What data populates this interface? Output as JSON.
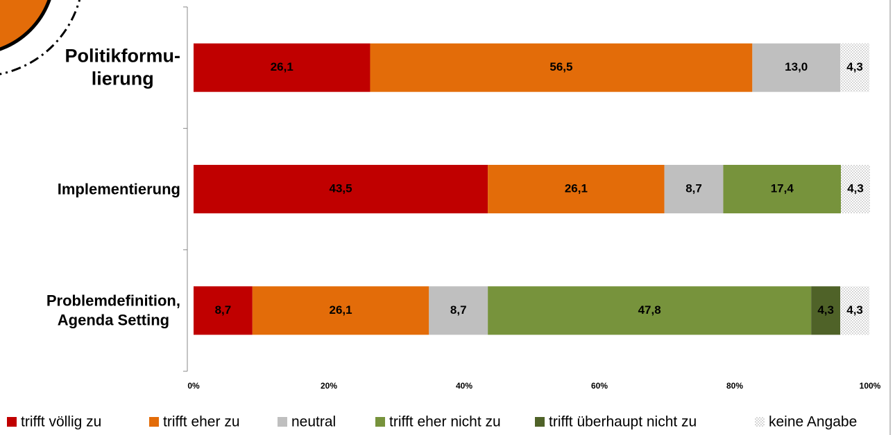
{
  "chart_data": {
    "type": "stacked-bar-horizontal",
    "categories": [
      "Politikformu-\nlierung",
      "Implementierung",
      "Problemdefinition,\nAgenda Setting"
    ],
    "series": [
      {
        "name": "trifft völlig zu",
        "color": "#c00000",
        "values": [
          26.1,
          43.5,
          8.7
        ],
        "value_labels": [
          "26,1",
          "43,5",
          "8,7"
        ]
      },
      {
        "name": "trifft eher zu",
        "color": "#e36c09",
        "values": [
          56.5,
          26.1,
          26.1
        ],
        "value_labels": [
          "56,5",
          "26,1",
          "26,1"
        ]
      },
      {
        "name": "neutral",
        "color": "#bfbfbf",
        "values": [
          13.0,
          8.7,
          8.7
        ],
        "value_labels": [
          "13,0",
          "8,7",
          "8,7"
        ]
      },
      {
        "name": "trifft eher nicht zu",
        "color": "#77933c",
        "values": [
          null,
          17.4,
          47.8
        ],
        "value_labels": [
          null,
          "17,4",
          "47,8"
        ]
      },
      {
        "name": "trifft überhaupt nicht zu",
        "color": "#4f6228",
        "values": [
          null,
          null,
          4.3
        ],
        "value_labels": [
          null,
          null,
          "4,3"
        ]
      },
      {
        "name": "keine Angabe",
        "color": "#e8e8e8",
        "values": [
          4.3,
          4.3,
          4.3
        ],
        "value_labels": [
          "4,3",
          "4,3",
          "4,3"
        ]
      }
    ],
    "xlim": [
      0,
      100
    ],
    "xticks": [
      {
        "value": 0,
        "label": "0%"
      },
      {
        "value": 20,
        "label": "20%"
      },
      {
        "value": 40,
        "label": "40%"
      },
      {
        "value": 60,
        "label": "60%"
      },
      {
        "value": 80,
        "label": "80%"
      },
      {
        "value": 100,
        "label": "100%"
      }
    ],
    "legend": "bottom"
  }
}
